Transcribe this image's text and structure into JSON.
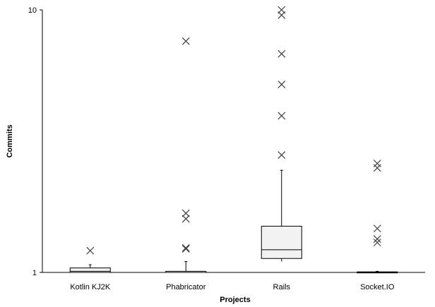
{
  "chart_data": {
    "type": "box",
    "xlabel": "Projects",
    "ylabel": "Commits",
    "y_scale": "log",
    "ylim": [
      1,
      10
    ],
    "y_ticks": [
      "1",
      "10"
    ],
    "grid": false,
    "colors": {
      "box_fill": "#f2f2f2",
      "stroke": "#000000",
      "outlier": "#404040"
    },
    "series": [
      {
        "category": "Kotlin KJ2K",
        "whisker_low": 1,
        "q1": 1,
        "median": 1.01,
        "q3": 1.04,
        "whisker_high": 1.07,
        "outliers": [
          1.21
        ]
      },
      {
        "category": "Phabricator",
        "whisker_low": 1,
        "q1": 1,
        "median": 1,
        "q3": 1.01,
        "whisker_high": 1.1,
        "outliers": [
          1.23,
          1.24,
          1.6,
          1.68,
          7.6
        ]
      },
      {
        "category": "Rails",
        "whisker_low": 1.1,
        "q1": 1.13,
        "median": 1.22,
        "q3": 1.5,
        "whisker_high": 2.45,
        "outliers": [
          2.8,
          3.95,
          5.2,
          6.8,
          9.55,
          10
        ]
      },
      {
        "category": "Socket.IO",
        "whisker_low": 1,
        "q1": 1,
        "median": 1,
        "q3": 1.005,
        "whisker_high": 1.01,
        "outliers": [
          1.3,
          1.34,
          1.47,
          2.5,
          2.6
        ]
      }
    ]
  }
}
